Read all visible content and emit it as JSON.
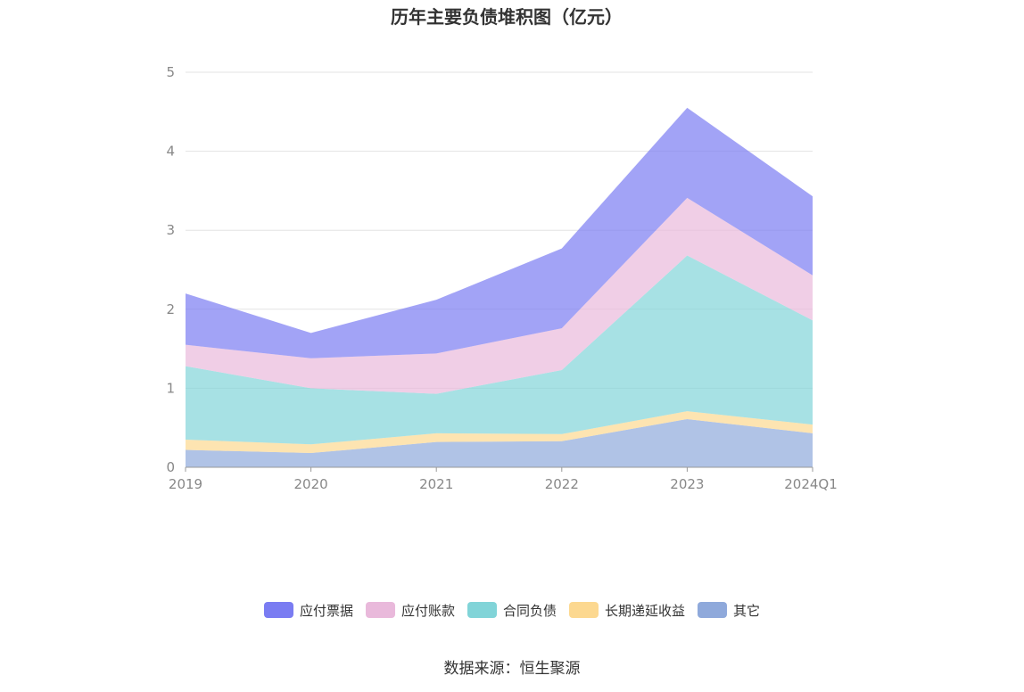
{
  "chart_data": {
    "type": "area",
    "stacked": true,
    "title": "历年主要负债堆积图（亿元）",
    "categories": [
      "2019",
      "2020",
      "2021",
      "2022",
      "2023",
      "2024Q1"
    ],
    "yticks": [
      "0",
      "1",
      "2",
      "3",
      "4",
      "5"
    ],
    "ylim": [
      0,
      5
    ],
    "grid": true,
    "legend_position": "bottom",
    "series": [
      {
        "name": "其它",
        "color": "#8fa9db",
        "values": [
          0.22,
          0.18,
          0.32,
          0.33,
          0.61,
          0.43
        ]
      },
      {
        "name": "长期递延收益",
        "color": "#fcd890",
        "values": [
          0.13,
          0.11,
          0.11,
          0.09,
          0.1,
          0.11
        ]
      },
      {
        "name": "合同负债",
        "color": "#81d4d8",
        "values": [
          0.93,
          0.71,
          0.5,
          0.81,
          1.97,
          1.32
        ]
      },
      {
        "name": "应付账款",
        "color": "#e9b9db",
        "values": [
          0.27,
          0.38,
          0.51,
          0.53,
          0.73,
          0.57
        ]
      },
      {
        "name": "应付票据",
        "color": "#7a7cf2",
        "values": [
          0.65,
          0.32,
          0.68,
          1.01,
          1.14,
          1.0
        ]
      }
    ],
    "legend_order": [
      "应付票据",
      "应付账款",
      "合同负债",
      "长期递延收益",
      "其它"
    ]
  },
  "source": "数据来源：恒生聚源"
}
